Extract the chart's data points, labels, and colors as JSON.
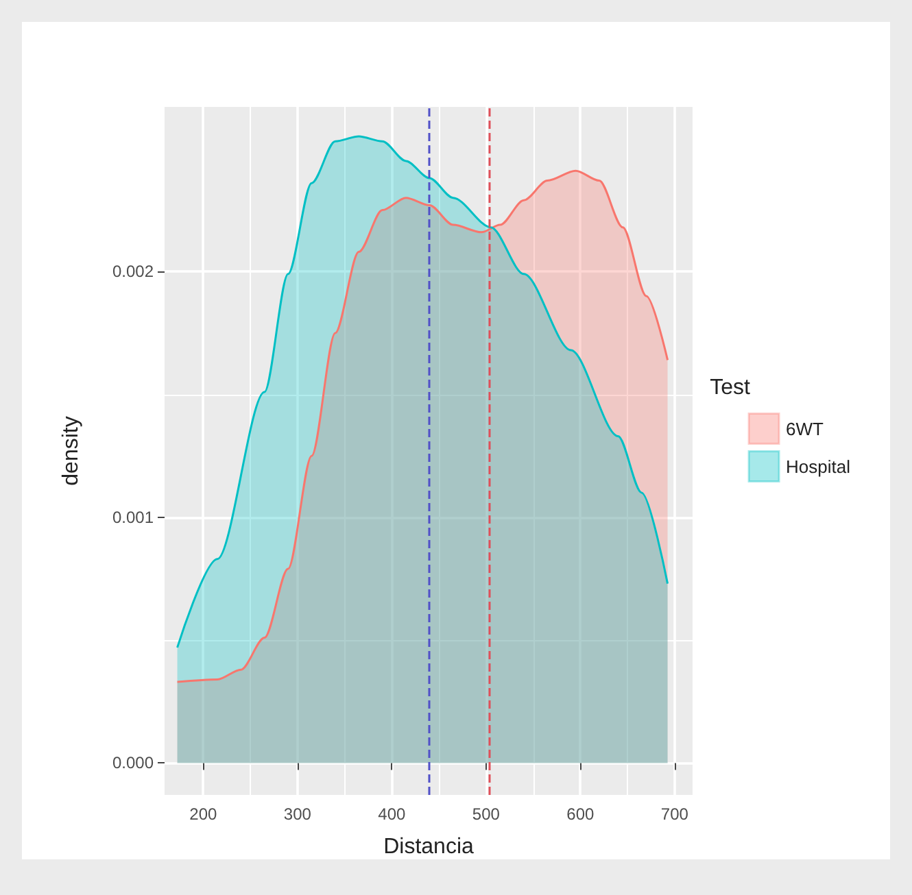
{
  "chart_data": {
    "type": "area",
    "xlabel": "Distancia",
    "ylabel": "density",
    "legend_title": "Test",
    "series": [
      {
        "name": "6WT",
        "color": "#f8766d",
        "x": [
          172.5,
          215,
          240,
          265,
          290,
          315,
          340,
          365,
          390,
          415,
          440,
          465,
          495,
          515,
          540,
          565,
          595,
          620,
          645,
          670,
          692.5
        ],
        "values": [
          0.00033,
          0.00034,
          0.00038,
          0.00051,
          0.00079,
          0.00125,
          0.00175,
          0.00208,
          0.00225,
          0.0023,
          0.00227,
          0.00219,
          0.00216,
          0.00219,
          0.00229,
          0.00237,
          0.00241,
          0.00237,
          0.00218,
          0.0019,
          0.00164
        ]
      },
      {
        "name": "Hospital",
        "color": "#00bfc4",
        "x": [
          172.5,
          215,
          265,
          290,
          315,
          340,
          365,
          390,
          415,
          440,
          465,
          505,
          540,
          590,
          640,
          665,
          692.5
        ],
        "values": [
          0.00047,
          0.00083,
          0.00151,
          0.00199,
          0.00236,
          0.00253,
          0.00255,
          0.00253,
          0.00245,
          0.00238,
          0.0023,
          0.00218,
          0.00199,
          0.00168,
          0.00133,
          0.0011,
          0.00073
        ]
      }
    ],
    "ref_lines": [
      {
        "axis": "x",
        "value": 439,
        "color": "#5050c8",
        "line_style": "dashed"
      },
      {
        "axis": "x",
        "value": 503,
        "color": "#e0505a",
        "line_style": "dashed"
      }
    ],
    "xlim": [
      159,
      719
    ],
    "ylim": [
      -0.00013,
      0.00267
    ],
    "xticks": [
      200,
      300,
      400,
      500,
      600,
      700
    ],
    "yticks": [
      {
        "value": 0,
        "label": "0.000"
      },
      {
        "value": 0.001,
        "label": "0.001"
      },
      {
        "value": 0.002,
        "label": "0.002"
      }
    ],
    "grid": true,
    "legend": "right",
    "marker": "none",
    "line_style": "solid"
  }
}
